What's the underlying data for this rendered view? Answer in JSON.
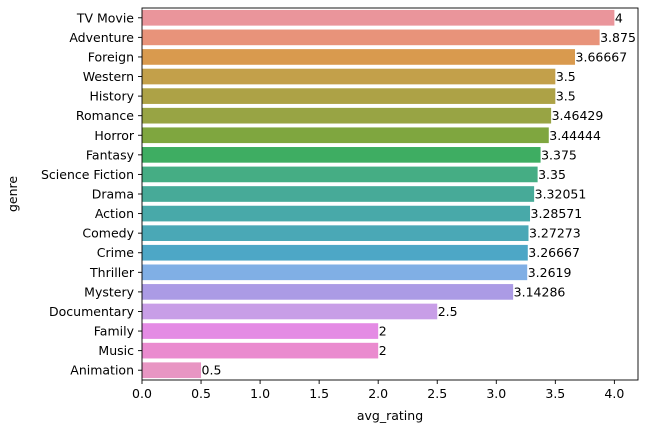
{
  "chart_data": {
    "type": "bar",
    "orientation": "horizontal",
    "xlabel": "avg_rating",
    "ylabel": "genre",
    "xlim": [
      0,
      4.2
    ],
    "x_ticks": [
      "0.0",
      "0.5",
      "1.0",
      "1.5",
      "2.0",
      "2.5",
      "3.0",
      "3.5",
      "4.0"
    ],
    "grid": false,
    "categories": [
      "TV Movie",
      "Adventure",
      "Foreign",
      "Western",
      "History",
      "Romance",
      "Horror",
      "Fantasy",
      "Science Fiction",
      "Drama",
      "Action",
      "Comedy",
      "Crime",
      "Thriller",
      "Mystery",
      "Documentary",
      "Family",
      "Music",
      "Animation"
    ],
    "values": [
      4,
      3.875,
      3.66667,
      3.5,
      3.5,
      3.46429,
      3.44444,
      3.375,
      3.35,
      3.32051,
      3.28571,
      3.27273,
      3.26667,
      3.2619,
      3.14286,
      2.5,
      2,
      2,
      0.5
    ],
    "value_labels": [
      "4",
      "3.875",
      "3.66667",
      "3.5",
      "3.5",
      "3.46429",
      "3.44444",
      "3.375",
      "3.35",
      "3.32051",
      "3.28571",
      "3.27273",
      "3.26667",
      "3.2619",
      "3.14286",
      "2.5",
      "2",
      "2",
      "0.5"
    ],
    "colors": [
      "#ea959b",
      "#e8937a",
      "#d99a4e",
      "#c3a04a",
      "#ada246",
      "#98a444",
      "#7fa63f",
      "#3ead62",
      "#45ad84",
      "#47aa98",
      "#48a9a9",
      "#4aa8b6",
      "#4da7c6",
      "#80afe5",
      "#ab9be5",
      "#c89ee7",
      "#e48be4",
      "#ea8bcf",
      "#e896c3"
    ]
  }
}
